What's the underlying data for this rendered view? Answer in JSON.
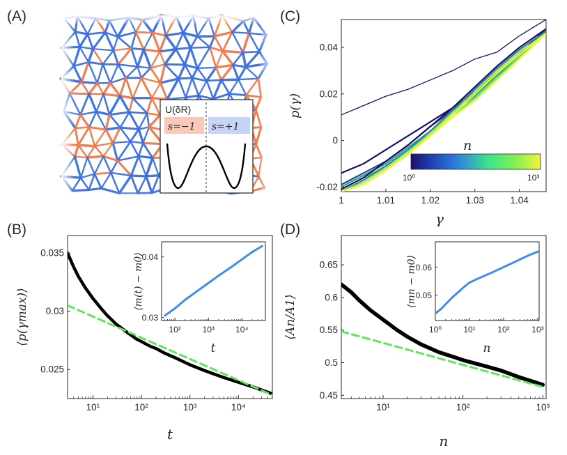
{
  "colors": {
    "black_curve": "#000000",
    "fit_line": "#5fe65a",
    "inset_curve": "#3b8df0",
    "network_blue": "#3b6fe0",
    "network_orange": "#f07a4a",
    "state_neg_bg": "#f7c9b8",
    "state_pos_bg": "#c6d4f5",
    "colorbar_low": "#1a0f6e",
    "colorbar_high": "#f5f33a"
  },
  "panels": {
    "A": {
      "label": "(A)",
      "inset_title": "U(δR)",
      "state_neg": "s=−1",
      "state_pos": "s=+1"
    },
    "B": {
      "label": "(B)"
    },
    "C": {
      "label": "(C)"
    },
    "D": {
      "label": "(D)"
    }
  },
  "chart_data": [
    {
      "id": "C",
      "type": "line",
      "xlabel": "γ",
      "ylabel": "p(γ)",
      "xlim": [
        1,
        1.046
      ],
      "ylim": [
        -0.022,
        0.052
      ],
      "xticks": [
        "1",
        "1.01",
        "1.02",
        "1.03",
        "1.04"
      ],
      "yticks": [
        "-0.02",
        "0",
        "0.02",
        "0.04"
      ],
      "colorbar": {
        "label": "n",
        "min_label": "10⁰",
        "max_label": "10³"
      },
      "series": [
        {
          "color": "#1a0f6e",
          "x": [
            1,
            1.005,
            1.01,
            1.015,
            1.02,
            1.025,
            1.03,
            1.035,
            1.04,
            1.046
          ],
          "y": [
            0.011,
            0.015,
            0.019,
            0.022,
            0.026,
            0.03,
            0.035,
            0.038,
            0.045,
            0.052
          ]
        },
        {
          "color": "#1a0f6e",
          "x": [
            1,
            1.005,
            1.01,
            1.015,
            1.02,
            1.025,
            1.03,
            1.035,
            1.04,
            1.046
          ],
          "y": [
            -0.014,
            -0.01,
            -0.004,
            0.002,
            0.008,
            0.014,
            0.021,
            0.029,
            0.037,
            0.048
          ]
        },
        {
          "color": "#24468e",
          "x": [
            1,
            1.005,
            1.01,
            1.015,
            1.02,
            1.025,
            1.03,
            1.035,
            1.04,
            1.046
          ],
          "y": [
            -0.019,
            -0.014,
            -0.009,
            -0.002,
            0.006,
            0.013,
            0.02,
            0.029,
            0.037,
            0.047
          ]
        },
        {
          "color": "#2ea58f",
          "x": [
            1,
            1.005,
            1.01,
            1.015,
            1.02,
            1.025,
            1.03,
            1.035,
            1.04,
            1.046
          ],
          "y": [
            -0.02,
            -0.015,
            -0.01,
            -0.003,
            0.004,
            0.012,
            0.019,
            0.028,
            0.036,
            0.047
          ]
        },
        {
          "color": "#5fe65a",
          "x": [
            1,
            1.005,
            1.01,
            1.015,
            1.02,
            1.025,
            1.03,
            1.035,
            1.04,
            1.046
          ],
          "y": [
            -0.021,
            -0.016,
            -0.011,
            -0.004,
            0.003,
            0.011,
            0.018,
            0.027,
            0.036,
            0.047
          ]
        },
        {
          "color": "#f5f33a",
          "x": [
            1,
            1.005,
            1.01,
            1.015,
            1.02,
            1.025,
            1.03,
            1.035,
            1.04,
            1.046
          ],
          "y": [
            -0.022,
            -0.017,
            -0.012,
            -0.005,
            0.002,
            0.01,
            0.017,
            0.026,
            0.035,
            0.046
          ]
        },
        {
          "color": "#1a0f6e",
          "x": [
            1.046,
            1.04,
            1.035,
            1.03,
            1.025,
            1.02,
            1.015,
            1.01,
            1.005,
            1
          ],
          "y": [
            0.048,
            0.04,
            0.032,
            0.023,
            0.014,
            0.006,
            -0.002,
            -0.009,
            -0.016,
            -0.021
          ]
        },
        {
          "color": "#2a7ea0",
          "x": [
            1.046,
            1.04,
            1.035,
            1.03,
            1.025,
            1.02,
            1.015,
            1.01,
            1.005,
            1
          ],
          "y": [
            0.047,
            0.039,
            0.031,
            0.022,
            0.013,
            0.004,
            -0.004,
            -0.011,
            -0.017,
            -0.022
          ]
        },
        {
          "color": "#9ef04a",
          "x": [
            1.046,
            1.04,
            1.035,
            1.03,
            1.025,
            1.02,
            1.015,
            1.01,
            1.005,
            1
          ],
          "y": [
            0.046,
            0.038,
            0.03,
            0.021,
            0.012,
            0.003,
            -0.005,
            -0.012,
            -0.018,
            -0.022
          ]
        },
        {
          "color": "#f5f33a",
          "x": [
            1.046,
            1.04,
            1.035,
            1.03,
            1.025,
            1.02,
            1.015,
            1.01,
            1.005,
            1
          ],
          "y": [
            0.046,
            0.037,
            0.029,
            0.02,
            0.011,
            0.002,
            -0.006,
            -0.013,
            -0.019,
            -0.022
          ]
        }
      ]
    },
    {
      "id": "B",
      "type": "line",
      "xscale": "log",
      "xlabel": "t",
      "ylabel": "⟨p(γmax)⟩",
      "xlim": [
        3,
        50000
      ],
      "ylim": [
        0.0225,
        0.0365
      ],
      "xticks": [
        {
          "v": 10,
          "label": "10¹"
        },
        {
          "v": 100,
          "label": "10²"
        },
        {
          "v": 1000,
          "label": "10³"
        },
        {
          "v": 10000,
          "label": "10⁴"
        }
      ],
      "yticks": [
        "0.025",
        "0.03",
        "0.035"
      ],
      "series": [
        {
          "name": "data",
          "color": "#000000",
          "x": [
            3,
            4,
            5,
            7,
            10,
            15,
            20,
            30,
            50,
            80,
            100,
            150,
            200,
            300,
            500,
            1000,
            2000,
            5000,
            10000,
            20000,
            50000
          ],
          "y": [
            0.035,
            0.0338,
            0.033,
            0.032,
            0.0311,
            0.0302,
            0.0296,
            0.0289,
            0.0282,
            0.0276,
            0.0274,
            0.027,
            0.0268,
            0.0264,
            0.026,
            0.0254,
            0.0249,
            0.0243,
            0.0239,
            0.0235,
            0.0229
          ]
        },
        {
          "name": "fit",
          "color": "#5fe65a",
          "dashed": true,
          "x": [
            3,
            50000
          ],
          "y": [
            0.0305,
            0.0228
          ]
        }
      ],
      "inset": {
        "xscale": "log",
        "xlabel": "t",
        "ylabel": "⟨m(t) − m0⟩",
        "xlim": [
          40,
          50000
        ],
        "ylim": [
          0.0295,
          0.0425
        ],
        "xticks": [
          {
            "v": 100,
            "label": "10²"
          },
          {
            "v": 1000,
            "label": "10³"
          },
          {
            "v": 10000,
            "label": "10⁴"
          }
        ],
        "yticks": [
          "0.03",
          "0.04"
        ],
        "x": [
          50,
          100,
          200,
          500,
          1000,
          2000,
          5000,
          10000,
          20000,
          40000
        ],
        "y": [
          0.0303,
          0.0315,
          0.0329,
          0.0345,
          0.0357,
          0.0369,
          0.0384,
          0.0396,
          0.0408,
          0.0418
        ]
      }
    },
    {
      "id": "D",
      "type": "line",
      "xscale": "log",
      "xlabel": "n",
      "ylabel": "⟨An/A1⟩",
      "xlim": [
        3,
        1100
      ],
      "ylim": [
        0.445,
        0.695
      ],
      "xticks": [
        {
          "v": 10,
          "label": "10¹"
        },
        {
          "v": 100,
          "label": "10²"
        },
        {
          "v": 1000,
          "label": "10³"
        }
      ],
      "yticks": [
        "0.45",
        "0.5",
        "0.55",
        "0.6",
        "0.65"
      ],
      "series": [
        {
          "name": "data",
          "color": "#000000",
          "x": [
            3,
            4,
            5,
            7,
            10,
            15,
            20,
            30,
            50,
            80,
            100,
            200,
            300,
            500,
            1000
          ],
          "y": [
            0.62,
            0.608,
            0.596,
            0.58,
            0.566,
            0.55,
            0.54,
            0.528,
            0.516,
            0.508,
            0.504,
            0.494,
            0.488,
            0.478,
            0.466
          ]
        },
        {
          "name": "fit",
          "color": "#5fe65a",
          "dashed": true,
          "x": [
            3,
            1000
          ],
          "y": [
            0.548,
            0.463
          ]
        }
      ],
      "inset": {
        "xscale": "log",
        "xlabel": "n",
        "ylabel": "⟨mn − m0⟩",
        "xlim": [
          1,
          1100
        ],
        "ylim": [
          0.041,
          0.069
        ],
        "xticks": [
          {
            "v": 1,
            "label": "10⁰"
          },
          {
            "v": 10,
            "label": "10¹"
          },
          {
            "v": 100,
            "label": "10²"
          },
          {
            "v": 1000,
            "label": "10³"
          }
        ],
        "yticks": [
          "0.05",
          "0.06"
        ],
        "x": [
          1,
          1.5,
          2,
          3,
          5,
          7,
          10,
          20,
          50,
          100,
          200,
          500,
          1000
        ],
        "y": [
          0.0435,
          0.0452,
          0.0468,
          0.049,
          0.0514,
          0.053,
          0.0545,
          0.0562,
          0.0583,
          0.06,
          0.0617,
          0.064,
          0.0655
        ]
      }
    }
  ]
}
